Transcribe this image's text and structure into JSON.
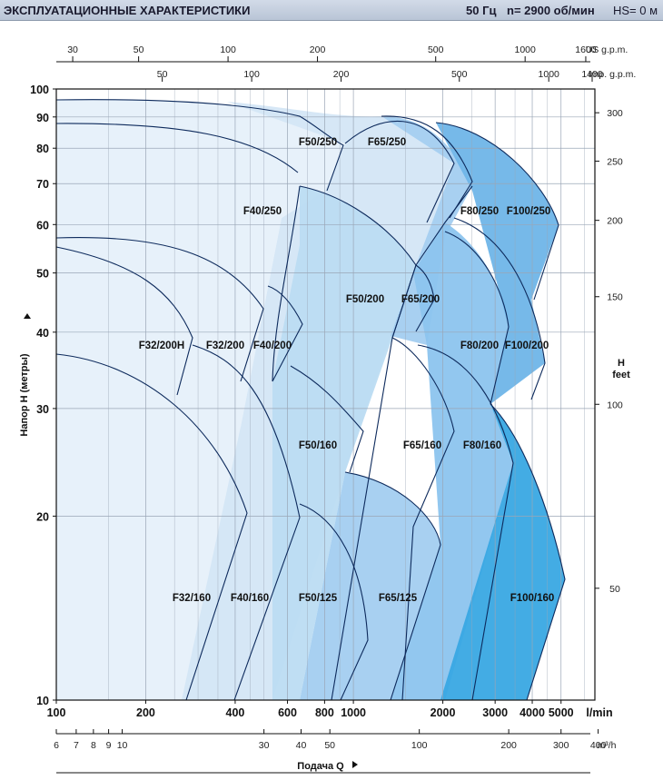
{
  "header": {
    "title": "ЭКСПЛУАТАЦИОННЫЕ ХАРАКТЕРИСТИКИ",
    "freq": "50 Гц",
    "speed": "n= 2900  об/мин",
    "hs": "HS= 0 м"
  },
  "colors": {
    "band1": "#e6f0fa",
    "band2": "#d4e6f6",
    "band3": "#bcdcf2",
    "band4": "#a3cef0",
    "band5": "#8cc4ee",
    "band6": "#6fb5e8",
    "band7": "#39a8e3",
    "stroke": "#0d2a5c",
    "grid": "#9aa6b6"
  },
  "chart_data": {
    "type": "area",
    "x_scale": "log",
    "y_scale": "log",
    "xlabel": "Подача Q",
    "ylabel": "Напор H (метры)",
    "right_label": [
      "H",
      "feet"
    ],
    "xlim_lmin": [
      100,
      6500
    ],
    "ylim_m": [
      10,
      100
    ],
    "x_ticks_lmin": [
      100,
      200,
      400,
      600,
      800,
      1000,
      2000,
      3000,
      4000,
      5000
    ],
    "x_unit_lmin": "l/min",
    "x_ticks_m3h": [
      6,
      7,
      8,
      9,
      10,
      30,
      40,
      50,
      100,
      200,
      300,
      400
    ],
    "x_unit_m3h": "m³/h",
    "top_ticks_usgpm": [
      30,
      50,
      100,
      200,
      500,
      1000,
      1600
    ],
    "top_unit_usgpm": "US g.p.m.",
    "top_ticks_impgpm": [
      50,
      100,
      200,
      500,
      1000,
      1400
    ],
    "top_unit_impgpm": "Imp. g.p.m.",
    "y_ticks_m": [
      10,
      20,
      30,
      40,
      50,
      60,
      70,
      80,
      90,
      100
    ],
    "y_ticks_ft": [
      50,
      100,
      150,
      200,
      250,
      300
    ],
    "zones": [
      {
        "name": "F32/160",
        "points": [
          [
            100,
            37
          ],
          [
            150,
            35
          ],
          [
            250,
            28
          ],
          [
            350,
            20.5
          ],
          [
            320,
            10
          ]
        ]
      },
      {
        "name": "F32/200H",
        "points": [
          [
            100,
            55
          ],
          [
            160,
            50
          ],
          [
            230,
            40
          ],
          [
            280,
            38.5
          ],
          [
            270,
            32
          ]
        ]
      },
      {
        "name": "F32/200",
        "points": [
          [
            100,
            57
          ],
          [
            200,
            55
          ],
          [
            340,
            47
          ],
          [
            460,
            43.5
          ],
          [
            380,
            33
          ]
        ]
      },
      {
        "name": "F40/160",
        "points": [
          [
            270,
            38
          ],
          [
            380,
            33
          ],
          [
            520,
            27
          ],
          [
            640,
            20.5
          ],
          [
            470,
            10
          ]
        ]
      },
      {
        "name": "F40/200",
        "points": [
          [
            510,
            47.5
          ],
          [
            600,
            44
          ],
          [
            700,
            41.5
          ],
          [
            600,
            33
          ],
          [
            530,
            30
          ]
        ]
      },
      {
        "name": "F40/250",
        "points": [
          [
            100,
            88
          ],
          [
            300,
            86
          ],
          [
            520,
            82
          ],
          [
            720,
            74
          ],
          [
            580,
            48
          ]
        ]
      },
      {
        "name": "F50/125",
        "points": [
          [
            650,
            21
          ],
          [
            800,
            19
          ],
          [
            950,
            15
          ],
          [
            1200,
            11.5
          ],
          [
            1060,
            10
          ]
        ]
      },
      {
        "name": "F50/160",
        "points": [
          [
            700,
            34.5
          ],
          [
            900,
            30
          ],
          [
            1100,
            23
          ],
          [
            1000,
            10
          ]
        ]
      },
      {
        "name": "F50/200",
        "points": [
          [
            720,
            69
          ],
          [
            1100,
            65
          ],
          [
            1500,
            57
          ],
          [
            1750,
            54
          ],
          [
            1350,
            38
          ]
        ]
      },
      {
        "name": "F50/250",
        "points": [
          [
            100,
            96
          ],
          [
            500,
            95
          ],
          [
            900,
            91
          ],
          [
            1150,
            83
          ],
          [
            950,
            69
          ]
        ]
      },
      {
        "name": "F65/125",
        "points": [
          [
            1050,
            23.5
          ],
          [
            1400,
            22.5
          ],
          [
            1900,
            19
          ],
          [
            2250,
            17
          ],
          [
            1900,
            10
          ]
        ]
      },
      {
        "name": "F65/160",
        "points": [
          [
            1350,
            39
          ],
          [
            1700,
            35
          ],
          [
            2050,
            30
          ],
          [
            2200,
            27.5
          ],
          [
            2050,
            10
          ]
        ]
      },
      {
        "name": "F65/200",
        "points": [
          [
            1750,
            52
          ],
          [
            2050,
            48.5
          ],
          [
            2200,
            46
          ],
          [
            2000,
            37
          ]
        ]
      },
      {
        "name": "F65/250",
        "points": [
          [
            1150,
            91
          ],
          [
            1600,
            89.5
          ],
          [
            2100,
            82
          ],
          [
            2450,
            70
          ],
          [
            2100,
            64
          ]
        ]
      },
      {
        "name": "F80/160",
        "points": [
          [
            1900,
            38
          ],
          [
            2400,
            36
          ],
          [
            3200,
            30
          ],
          [
            3700,
            24.5
          ],
          [
            3400,
            10
          ]
        ]
      },
      {
        "name": "F80/200",
        "points": [
          [
            2050,
            59
          ],
          [
            2600,
            57
          ],
          [
            3200,
            48
          ],
          [
            3300,
            44
          ],
          [
            2800,
            32
          ]
        ]
      },
      {
        "name": "F80/250",
        "points": [
          [
            2200,
            88
          ],
          [
            3000,
            87
          ],
          [
            3400,
            80
          ],
          [
            3600,
            72
          ],
          [
            3200,
            64
          ]
        ]
      },
      {
        "name": "F100/160",
        "points": [
          [
            3300,
            32.5
          ],
          [
            4000,
            28
          ],
          [
            5200,
            20
          ],
          [
            6000,
            16
          ],
          [
            5400,
            10
          ]
        ]
      },
      {
        "name": "F100/200",
        "points": [
          [
            2400,
            62
          ],
          [
            3500,
            58.5
          ],
          [
            4500,
            51
          ],
          [
            5600,
            39
          ],
          [
            4300,
            32
          ]
        ]
      },
      {
        "name": "F100/250",
        "points": [
          [
            2400,
            88
          ],
          [
            3300,
            87
          ],
          [
            4600,
            78
          ],
          [
            5700,
            62
          ],
          [
            4700,
            48
          ]
        ]
      }
    ]
  }
}
